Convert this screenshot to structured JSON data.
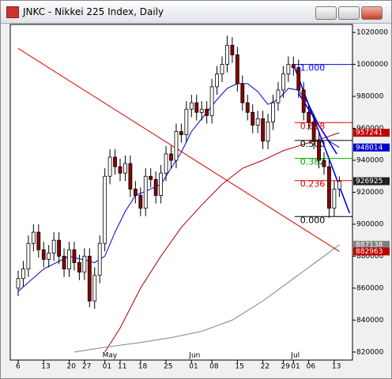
{
  "header": {
    "title": "JNKC - Nikkei 225 Index, Daily"
  },
  "chart_data": {
    "type": "candlestick",
    "categories": [
      "6",
      null,
      null,
      null,
      null,
      "13",
      null,
      null,
      null,
      null,
      "20",
      null,
      null,
      "27",
      null,
      null,
      null,
      "01",
      null,
      null,
      "11",
      null,
      null,
      null,
      "18",
      null,
      null,
      null,
      null,
      "25",
      null,
      null,
      null,
      null,
      "01",
      null,
      null,
      null,
      "08",
      null,
      null,
      null,
      null,
      "15",
      null,
      null,
      null,
      null,
      "22",
      null,
      null,
      null,
      "29",
      null,
      "01",
      null,
      null,
      "06",
      null,
      null,
      null,
      null,
      "13",
      null
    ],
    "months": [
      null,
      null,
      null,
      null,
      null,
      null,
      null,
      null,
      null,
      null,
      null,
      null,
      null,
      null,
      null,
      null,
      null,
      "May",
      null,
      null,
      null,
      null,
      null,
      null,
      null,
      null,
      null,
      null,
      null,
      null,
      null,
      null,
      null,
      null,
      "Jun",
      null,
      null,
      null,
      null,
      null,
      null,
      null,
      null,
      null,
      null,
      null,
      null,
      null,
      null,
      null,
      null,
      null,
      null,
      null,
      "Jul",
      null,
      null,
      null,
      null,
      null,
      null,
      null,
      null,
      null
    ],
    "open": [
      860000,
      866000,
      872000,
      888000,
      895000,
      884000,
      878000,
      882000,
      890000,
      880000,
      872000,
      884000,
      876000,
      870000,
      880000,
      852000,
      868000,
      888000,
      930000,
      942000,
      936000,
      932000,
      938000,
      922000,
      918000,
      910000,
      930000,
      928000,
      918000,
      932000,
      944000,
      940000,
      958000,
      956000,
      972000,
      976000,
      970000,
      972000,
      968000,
      986000,
      994000,
      1000000,
      1012000,
      1006000,
      988000,
      976000,
      970000,
      962000,
      966000,
      952000,
      964000,
      976000,
      984000,
      994000,
      1000000,
      998000,
      984000,
      970000,
      964000,
      952000,
      940000,
      936000,
      910000,
      922000
    ],
    "high": [
      871000,
      877000,
      893000,
      900000,
      900000,
      889000,
      887000,
      895000,
      895000,
      885000,
      889000,
      889000,
      881000,
      885000,
      885000,
      873000,
      893000,
      935000,
      947000,
      947000,
      941000,
      943000,
      943000,
      927000,
      923000,
      935000,
      935000,
      933000,
      937000,
      949000,
      949000,
      963000,
      963000,
      977000,
      981000,
      981000,
      977000,
      977000,
      991000,
      999000,
      1005000,
      1018000,
      1017000,
      1011000,
      993000,
      981000,
      975000,
      971000,
      971000,
      969000,
      981000,
      989000,
      999000,
      1005000,
      1005000,
      1003000,
      989000,
      975000,
      969000,
      957000,
      945000,
      941000,
      927000,
      930000
    ],
    "low": [
      855000,
      861000,
      867000,
      883000,
      879000,
      873000,
      873000,
      877000,
      875000,
      867000,
      867000,
      871000,
      865000,
      865000,
      848000,
      847000,
      863000,
      883000,
      925000,
      931000,
      927000,
      927000,
      917000,
      913000,
      905000,
      905000,
      923000,
      913000,
      913000,
      927000,
      935000,
      935000,
      951000,
      951000,
      967000,
      965000,
      965000,
      963000,
      963000,
      981000,
      989000,
      995000,
      1001000,
      983000,
      971000,
      965000,
      957000,
      957000,
      947000,
      947000,
      959000,
      971000,
      979000,
      989000,
      993000,
      979000,
      965000,
      959000,
      947000,
      935000,
      931000,
      904000,
      905000,
      917000
    ],
    "close": [
      866000,
      872000,
      888000,
      895000,
      884000,
      878000,
      882000,
      890000,
      880000,
      872000,
      884000,
      876000,
      870000,
      880000,
      852000,
      868000,
      888000,
      930000,
      942000,
      936000,
      932000,
      938000,
      922000,
      918000,
      910000,
      930000,
      928000,
      918000,
      932000,
      944000,
      940000,
      958000,
      956000,
      972000,
      976000,
      970000,
      972000,
      968000,
      986000,
      994000,
      1000000,
      1012000,
      1006000,
      988000,
      976000,
      970000,
      962000,
      966000,
      952000,
      964000,
      976000,
      984000,
      994000,
      1000000,
      998000,
      984000,
      970000,
      964000,
      952000,
      940000,
      936000,
      910000,
      922000,
      926925
    ],
    "up_color": "#ffffff",
    "down_color": "#8b0000",
    "ylim": [
      815000,
      1025000
    ],
    "yticks": [
      820000,
      840000,
      860000,
      880000,
      900000,
      920000,
      940000,
      960000,
      980000,
      1000000,
      1020000
    ],
    "lines": [
      {
        "color": "#0000cc",
        "x": [
          0,
          5,
          10,
          15,
          17,
          19,
          21,
          23,
          26,
          28,
          30,
          32,
          34,
          36,
          39,
          41,
          43,
          45,
          47,
          49,
          51,
          53,
          55,
          57,
          59,
          61,
          63
        ],
        "values": [
          858000,
          872000,
          880000,
          876000,
          880000,
          895000,
          908000,
          918000,
          922000,
          925000,
          935000,
          945000,
          958000,
          966000,
          978000,
          985000,
          988000,
          988000,
          983000,
          975000,
          978000,
          985000,
          984000,
          975000,
          962000,
          952000,
          948014
        ]
      },
      {
        "color": "#aa0000",
        "x": [
          17,
          20,
          24,
          28,
          32,
          36,
          40,
          44,
          48,
          52,
          56,
          60,
          63
        ],
        "values": [
          820000,
          835000,
          860000,
          880000,
          898000,
          912000,
          925000,
          935000,
          940000,
          946000,
          950000,
          954000,
          957241
        ]
      },
      {
        "color": "#808080",
        "x": [
          11,
          17,
          24,
          30,
          36,
          42,
          48,
          54,
          60,
          63
        ],
        "values": [
          820000,
          823000,
          826000,
          829000,
          833000,
          840000,
          852000,
          866000,
          880000,
          887138
        ]
      },
      {
        "color": "#dd0000",
        "x": [
          0,
          63
        ],
        "values": [
          1010000,
          882963
        ]
      },
      {
        "color": "#0000ff",
        "x": [
          54,
          65
        ],
        "values": [
          1000000,
          907000
        ]
      },
      {
        "color": "#0000ff",
        "x": [
          55,
          62.5
        ],
        "values": [
          982000,
          944000
        ]
      }
    ],
    "price_labels": [
      {
        "value": 957241,
        "color": "#c00000"
      },
      {
        "value": 948014,
        "color": "#0000cc"
      },
      {
        "value": 926925,
        "color": "#202020"
      },
      {
        "value": 887138,
        "color": "#808080"
      },
      {
        "value": 882963,
        "color": "#c00000"
      }
    ],
    "fibonacci": [
      {
        "label": "1.000",
        "value": 1000000,
        "color": "#0000ff"
      },
      {
        "label": "0.618",
        "value": 963600,
        "color": "#dd0000"
      },
      {
        "label": "0.500",
        "value": 952400,
        "color": "#000000"
      },
      {
        "label": "0.382",
        "value": 941200,
        "color": "#00aa00"
      },
      {
        "label": "0.236",
        "value": 927300,
        "color": "#dd0000"
      },
      {
        "label": "0.000",
        "value": 904800,
        "color": "#000000"
      }
    ]
  }
}
